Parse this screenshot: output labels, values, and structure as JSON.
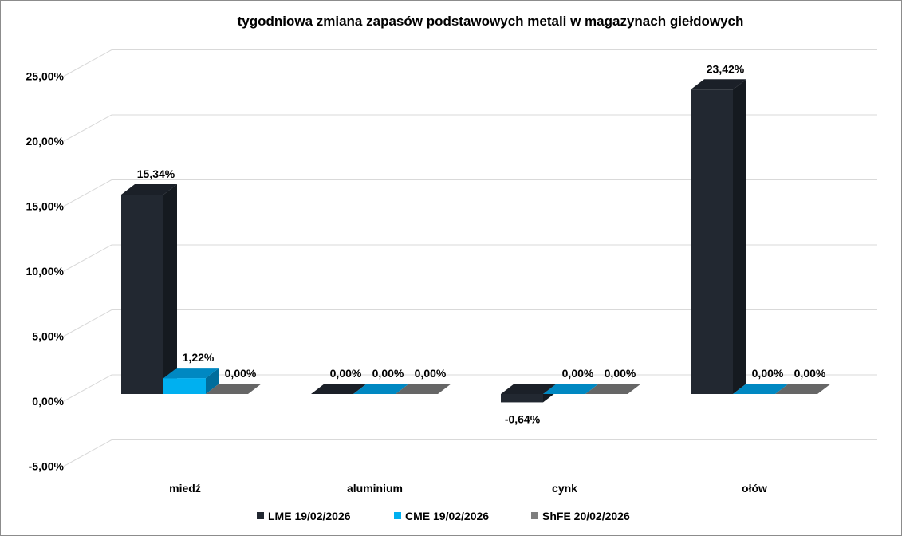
{
  "chart_data": {
    "type": "bar",
    "title": "tygodniowa zmiana zapasów podstawowych metali w magazynach giełdowych",
    "categories": [
      "miedź",
      "aluminium",
      "cynk",
      "ołów"
    ],
    "series": [
      {
        "name": "LME 19/02/2026",
        "values": [
          15.34,
          0.0,
          -0.64,
          23.42
        ],
        "labels": [
          "15,34%",
          "0,00%",
          "-0,64%",
          "23,42%"
        ],
        "color": "#222831",
        "side": "#151a20",
        "top": "#1b2028"
      },
      {
        "name": "CME 19/02/2026",
        "values": [
          1.22,
          0.0,
          0.0,
          0.0
        ],
        "labels": [
          "1,22%",
          "0,00%",
          "0,00%",
          "0,00%"
        ],
        "color": "#00b0f0",
        "side": "#006d9c",
        "top": "#0088c2"
      },
      {
        "name": "ShFE 20/02/2026",
        "values": [
          0.0,
          0.0,
          0.0,
          0.0
        ],
        "labels": [
          "0,00%",
          "0,00%",
          "0,00%",
          "0,00%"
        ],
        "color": "#7f7f7f",
        "side": "#5a5a5a",
        "top": "#666666"
      }
    ],
    "yticks": [
      -5,
      0,
      5,
      10,
      15,
      20,
      25
    ],
    "ytick_labels": [
      "-5,00%",
      "0,00%",
      "5,00%",
      "10,00%",
      "15,00%",
      "20,00%",
      "25,00%"
    ],
    "ylim": [
      -5,
      25
    ],
    "xlabel": "",
    "ylabel": "",
    "grid": true,
    "legend": "bottom"
  }
}
